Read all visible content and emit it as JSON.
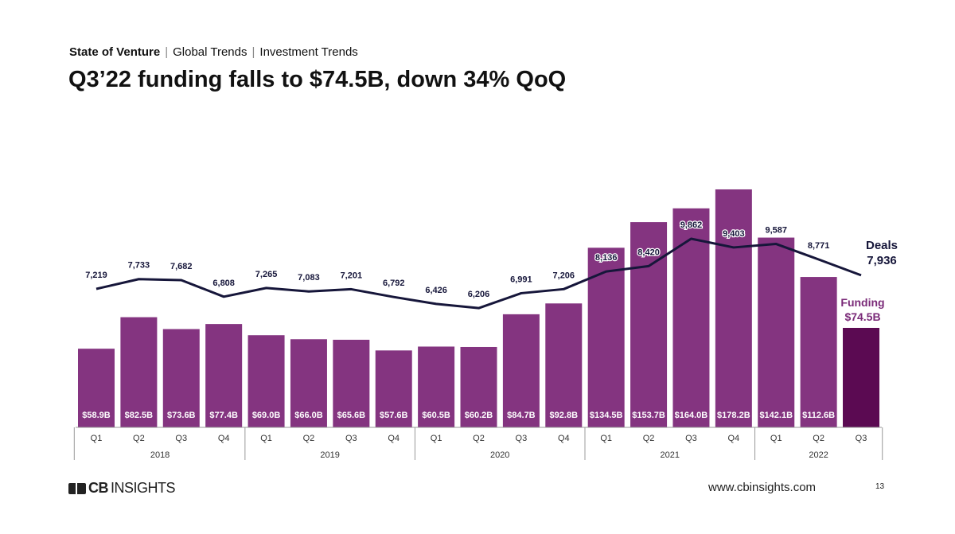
{
  "header": {
    "crumb1": "State of Venture",
    "crumb2": "Global Trends",
    "crumb3": "Investment Trends",
    "separator": "|",
    "title": "Q3’22 funding falls to $74.5B, down 34% QoQ"
  },
  "footer": {
    "logo": "CBINSIGHTS",
    "url": "www.cbinsights.com",
    "page": "13"
  },
  "colors": {
    "bar": "#843480",
    "bar_highlight": "#5b0a52",
    "line": "#16163a",
    "funding_label": "#7a2a78"
  },
  "chart_data": {
    "type": "bar+line",
    "categories": [
      "Q1",
      "Q2",
      "Q3",
      "Q4",
      "Q1",
      "Q2",
      "Q3",
      "Q4",
      "Q1",
      "Q2",
      "Q3",
      "Q4",
      "Q1",
      "Q2",
      "Q3",
      "Q4",
      "Q1",
      "Q2",
      "Q3"
    ],
    "years": [
      {
        "label": "2018",
        "count": 4
      },
      {
        "label": "2019",
        "count": 4
      },
      {
        "label": "2020",
        "count": 4
      },
      {
        "label": "2021",
        "count": 4
      },
      {
        "label": "2022",
        "count": 3
      }
    ],
    "series": [
      {
        "name": "Funding",
        "type": "bar",
        "unit": "$B",
        "values": [
          58.9,
          82.5,
          73.6,
          77.4,
          69.0,
          66.0,
          65.6,
          57.6,
          60.5,
          60.2,
          84.7,
          92.8,
          134.5,
          153.7,
          164.0,
          178.2,
          142.1,
          112.6,
          74.5
        ],
        "labels": [
          "$58.9B",
          "$82.5B",
          "$73.6B",
          "$77.4B",
          "$69.0B",
          "$66.0B",
          "$65.6B",
          "$57.6B",
          "$60.5B",
          "$60.2B",
          "$84.7B",
          "$92.8B",
          "$134.5B",
          "$153.7B",
          "$164.0B",
          "$178.2B",
          "$142.1B",
          "$112.6B",
          ""
        ]
      },
      {
        "name": "Deals",
        "type": "line",
        "values": [
          7219,
          7733,
          7682,
          6808,
          7265,
          7083,
          7201,
          6792,
          6426,
          6206,
          6991,
          7206,
          8136,
          8420,
          9862,
          9403,
          9587,
          8771,
          7936
        ],
        "labels": [
          "7,219",
          "7,733",
          "7,682",
          "6,808",
          "7,265",
          "7,083",
          "7,201",
          "6,792",
          "6,426",
          "6,206",
          "6,991",
          "7,206",
          "8,136",
          "8,420",
          "9,862",
          "9,403",
          "9,587",
          "8,771",
          ""
        ]
      }
    ],
    "annotations": {
      "deals_title": "Deals",
      "deals_value": "7,936",
      "funding_title": "Funding",
      "funding_value": "$74.5B"
    }
  }
}
